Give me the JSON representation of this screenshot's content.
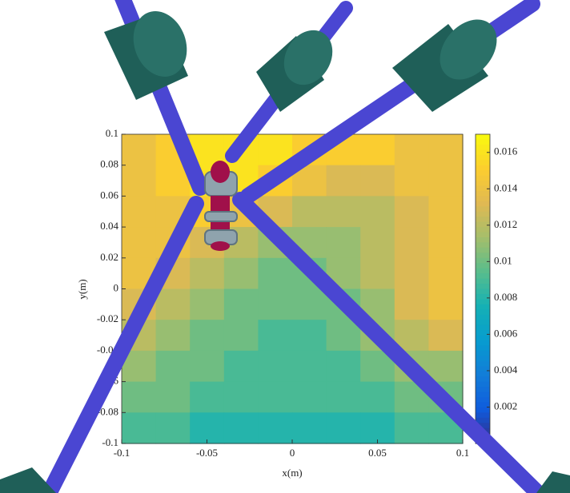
{
  "chart_data": {
    "type": "heatmap",
    "xlabel": "x(m)",
    "ylabel": "y(m)",
    "xlim": [
      -0.1,
      0.1
    ],
    "xticks": [
      -0.1,
      -0.05,
      0,
      0.05,
      0.1
    ],
    "ylim": [
      -0.1,
      0.1
    ],
    "yticks": [
      -0.1,
      -0.08,
      -0.06,
      -0.04,
      -0.02,
      0,
      0.02,
      0.04,
      0.06,
      0.08,
      0.1
    ],
    "clim": [
      0,
      0.017
    ],
    "cticks": [
      0.002,
      0.004,
      0.006,
      0.008,
      0.01,
      0.012,
      0.014,
      0.016
    ],
    "colormap": "parula",
    "z": [
      [
        0.014,
        0.015,
        0.016,
        0.016,
        0.016,
        0.015,
        0.015,
        0.015,
        0.014,
        0.014
      ],
      [
        0.014,
        0.015,
        0.016,
        0.016,
        0.015,
        0.014,
        0.013,
        0.013,
        0.014,
        0.014
      ],
      [
        0.014,
        0.014,
        0.015,
        0.014,
        0.013,
        0.012,
        0.012,
        0.012,
        0.013,
        0.014
      ],
      [
        0.014,
        0.014,
        0.013,
        0.012,
        0.011,
        0.011,
        0.011,
        0.012,
        0.013,
        0.014
      ],
      [
        0.014,
        0.013,
        0.012,
        0.011,
        0.01,
        0.01,
        0.011,
        0.012,
        0.013,
        0.014
      ],
      [
        0.013,
        0.012,
        0.011,
        0.01,
        0.01,
        0.01,
        0.01,
        0.011,
        0.013,
        0.014
      ],
      [
        0.012,
        0.011,
        0.01,
        0.01,
        0.009,
        0.009,
        0.01,
        0.011,
        0.012,
        0.013
      ],
      [
        0.011,
        0.01,
        0.01,
        0.009,
        0.009,
        0.009,
        0.009,
        0.01,
        0.011,
        0.011
      ],
      [
        0.01,
        0.01,
        0.009,
        0.009,
        0.009,
        0.009,
        0.009,
        0.009,
        0.01,
        0.01
      ],
      [
        0.009,
        0.009,
        0.008,
        0.008,
        0.008,
        0.008,
        0.008,
        0.008,
        0.009,
        0.009
      ]
    ]
  }
}
